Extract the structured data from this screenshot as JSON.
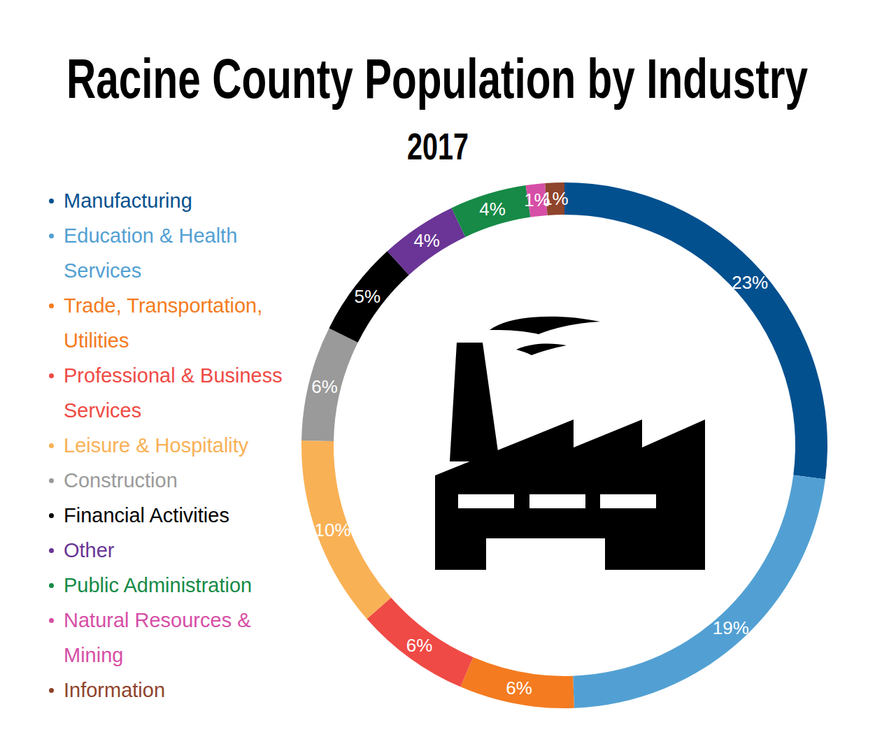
{
  "chart_data": {
    "type": "pie",
    "title": "Racine County Population by Industry",
    "subtitle": "2017",
    "categories": [
      "Manufacturing",
      "Education & Health Services",
      "Trade, Transportation, Utilities",
      "Professional & Business Services",
      "Leisure & Hospitality",
      "Construction",
      "Financial Activities",
      "Other",
      "Public Administration",
      "Natural Resources & Mining",
      "Information"
    ],
    "values": [
      23,
      19,
      6,
      6,
      10,
      6,
      5,
      4,
      4,
      1,
      1
    ],
    "value_labels": [
      "23%",
      "19%",
      "6%",
      "6%",
      "10%",
      "6%",
      "5%",
      "4%",
      "4%",
      "1%",
      "1%"
    ],
    "colors": [
      "#03508f",
      "#52a0d3",
      "#f47b20",
      "#ef4a45",
      "#f9b155",
      "#9a9a9a",
      "#000000",
      "#6a3596",
      "#168a46",
      "#d64fa6",
      "#8f442c"
    ],
    "data_labels": true,
    "legend": "left"
  }
}
